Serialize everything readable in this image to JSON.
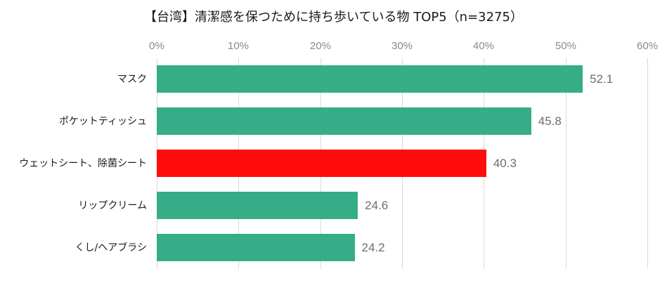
{
  "chart_data": {
    "type": "bar",
    "orientation": "horizontal",
    "title": "【台湾】清潔感を保つために持ち歩いている物 TOP5（n=3275）",
    "xlabel": "",
    "ylabel": "",
    "xlim": [
      0,
      60
    ],
    "x_ticks": [
      "0%",
      "10%",
      "20%",
      "30%",
      "40%",
      "50%",
      "60%"
    ],
    "grid": true,
    "legend": null,
    "categories": [
      "マスク",
      "ポケットティッシュ",
      "ウェットシート、除菌シート",
      "リップクリーム",
      "くし/ヘアブラシ"
    ],
    "values": [
      52.1,
      45.8,
      40.3,
      24.6,
      24.2
    ],
    "value_labels": [
      "52.1",
      "45.8",
      "40.3",
      "24.6",
      "24.2"
    ],
    "bar_colors": [
      "#36ad86",
      "#36ad86",
      "#ff0d0d",
      "#36ad86",
      "#36ad86"
    ]
  },
  "colors": {
    "default_bar": "#36ad86",
    "highlight_bar": "#ff0d0d",
    "gridline": "#d9d9d9",
    "tick_text": "#8a8a8a",
    "value_text": "#6e6e6e"
  }
}
